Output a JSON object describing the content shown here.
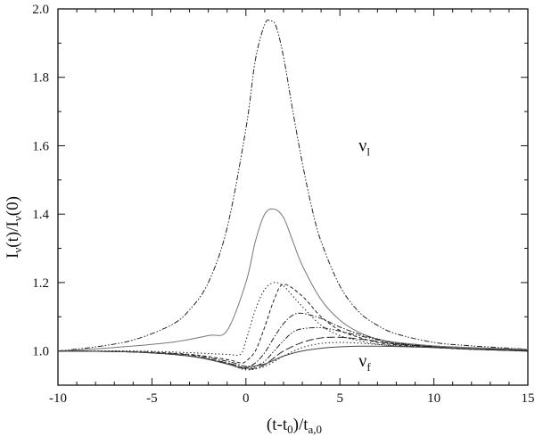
{
  "chart_data": {
    "type": "line",
    "xlim": [
      -10,
      15
    ],
    "ylim": [
      0.9,
      2.0
    ],
    "x_ticks": [
      -10,
      -5,
      0,
      5,
      10,
      15
    ],
    "y_ticks": [
      1.0,
      1.2,
      1.4,
      1.6,
      1.8,
      2.0
    ],
    "x_tick_labels": [
      "-10",
      "-5",
      "0",
      "5",
      "10",
      "15"
    ],
    "y_tick_labels": [
      "1.0",
      "1.2",
      "1.4",
      "1.6",
      "1.8",
      "2.0"
    ],
    "xlabel": {
      "main": "(t-t",
      "sub1": "0",
      "mid": ")/t",
      "sub2": "a,0"
    },
    "ylabel": {
      "a": "I",
      "sub1": "ν",
      "b": "(t)/I",
      "sub2": "ν",
      "c": "(0)"
    },
    "annotations": [
      {
        "main": "ν",
        "sub": "l",
        "x": 6.0,
        "y": 1.6
      },
      {
        "main": "ν",
        "sub": "f",
        "x": 6.0,
        "y": 0.97
      }
    ],
    "grid": false,
    "legend": "none",
    "series": [
      {
        "style": "dash-dot-dot",
        "color": "#222222",
        "x": [
          -10,
          -8,
          -6,
          -4,
          -3,
          -2,
          -1,
          0,
          0.5,
          1,
          1.3,
          1.6,
          2,
          2.5,
          3,
          3.5,
          4,
          5,
          6,
          7,
          8,
          10,
          12,
          15
        ],
        "y": [
          1.0,
          1.012,
          1.032,
          1.075,
          1.12,
          1.2,
          1.36,
          1.65,
          1.85,
          1.955,
          1.965,
          1.95,
          1.86,
          1.7,
          1.55,
          1.42,
          1.32,
          1.19,
          1.115,
          1.075,
          1.05,
          1.025,
          1.015,
          1.005
        ]
      },
      {
        "style": "solid",
        "color": "#777777",
        "x": [
          -10,
          -7,
          -4,
          -2,
          -1,
          0,
          0.5,
          1,
          1.5,
          2,
          2.5,
          3,
          4,
          5,
          6,
          7,
          8,
          10,
          12,
          15
        ],
        "y": [
          1.0,
          1.01,
          1.025,
          1.045,
          1.06,
          1.2,
          1.32,
          1.4,
          1.415,
          1.39,
          1.32,
          1.25,
          1.15,
          1.09,
          1.055,
          1.035,
          1.025,
          1.015,
          1.01,
          1.005
        ]
      },
      {
        "style": "dotted",
        "color": "#222222",
        "x": [
          -10,
          -6,
          -3,
          -1,
          -0.3,
          0,
          0.5,
          1,
          1.5,
          2,
          2.5,
          3,
          4,
          5,
          6,
          7,
          8,
          10,
          12,
          15
        ],
        "y": [
          1.0,
          1.0,
          0.995,
          0.99,
          0.99,
          1.03,
          1.12,
          1.18,
          1.2,
          1.19,
          1.16,
          1.13,
          1.075,
          1.045,
          1.03,
          1.02,
          1.015,
          1.01,
          1.005,
          1.0
        ]
      },
      {
        "style": "dashed-short",
        "color": "#222222",
        "x": [
          -10,
          -6,
          -3,
          -1,
          -0.3,
          0,
          0.5,
          1,
          1.5,
          2,
          3,
          4,
          5,
          6,
          7,
          8,
          10,
          12,
          15
        ],
        "y": [
          1.0,
          0.998,
          0.99,
          0.975,
          0.965,
          0.97,
          1.0,
          1.07,
          1.15,
          1.195,
          1.16,
          1.1,
          1.06,
          1.04,
          1.025,
          1.018,
          1.01,
          1.005,
          1.0
        ]
      },
      {
        "style": "dash-dot",
        "color": "#222222",
        "x": [
          -10,
          -6,
          -3,
          -1,
          0,
          0.5,
          1,
          1.5,
          2,
          2.5,
          3,
          4,
          5,
          6,
          7,
          8,
          10,
          12,
          15
        ],
        "y": [
          1.0,
          0.997,
          0.988,
          0.97,
          0.955,
          0.965,
          0.995,
          1.04,
          1.08,
          1.105,
          1.11,
          1.095,
          1.07,
          1.05,
          1.035,
          1.022,
          1.012,
          1.006,
          1.0
        ]
      },
      {
        "style": "dash-dot-dot",
        "color": "#222222",
        "x": [
          -10,
          -6,
          -3,
          -1,
          0,
          0.5,
          1,
          1.5,
          2,
          2.5,
          3,
          4,
          5,
          6,
          7,
          8,
          10,
          12,
          15
        ],
        "y": [
          1.0,
          0.997,
          0.985,
          0.965,
          0.95,
          0.955,
          0.97,
          1.0,
          1.03,
          1.055,
          1.065,
          1.068,
          1.058,
          1.045,
          1.033,
          1.023,
          1.013,
          1.007,
          1.0
        ]
      },
      {
        "style": "long-dash",
        "color": "#222222",
        "x": [
          -10,
          -6,
          -3,
          -1,
          0,
          0.5,
          1,
          1.5,
          2,
          3,
          4,
          5,
          6,
          7,
          8,
          10,
          12,
          15
        ],
        "y": [
          1.0,
          0.997,
          0.985,
          0.965,
          0.948,
          0.95,
          0.96,
          0.98,
          1.0,
          1.025,
          1.038,
          1.04,
          1.035,
          1.028,
          1.02,
          1.012,
          1.006,
          1.0
        ]
      },
      {
        "style": "dotted",
        "color": "#222222",
        "x": [
          -10,
          -6,
          -3,
          -1,
          0,
          1,
          2,
          3,
          4,
          5,
          6,
          7,
          8,
          10,
          12,
          15
        ],
        "y": [
          1.0,
          0.997,
          0.985,
          0.963,
          0.945,
          0.955,
          0.985,
          1.01,
          1.022,
          1.025,
          1.023,
          1.019,
          1.015,
          1.01,
          1.005,
          1.0
        ]
      },
      {
        "style": "solid",
        "color": "#444444",
        "x": [
          -10,
          -6,
          -3,
          -1,
          -0.3,
          0,
          1,
          2,
          3,
          4,
          5,
          6,
          7,
          8,
          10,
          12,
          15
        ],
        "y": [
          1.0,
          0.997,
          0.985,
          0.962,
          0.95,
          0.952,
          0.962,
          0.985,
          1.0,
          1.008,
          1.012,
          1.014,
          1.014,
          1.013,
          1.01,
          1.007,
          1.003
        ]
      }
    ]
  }
}
